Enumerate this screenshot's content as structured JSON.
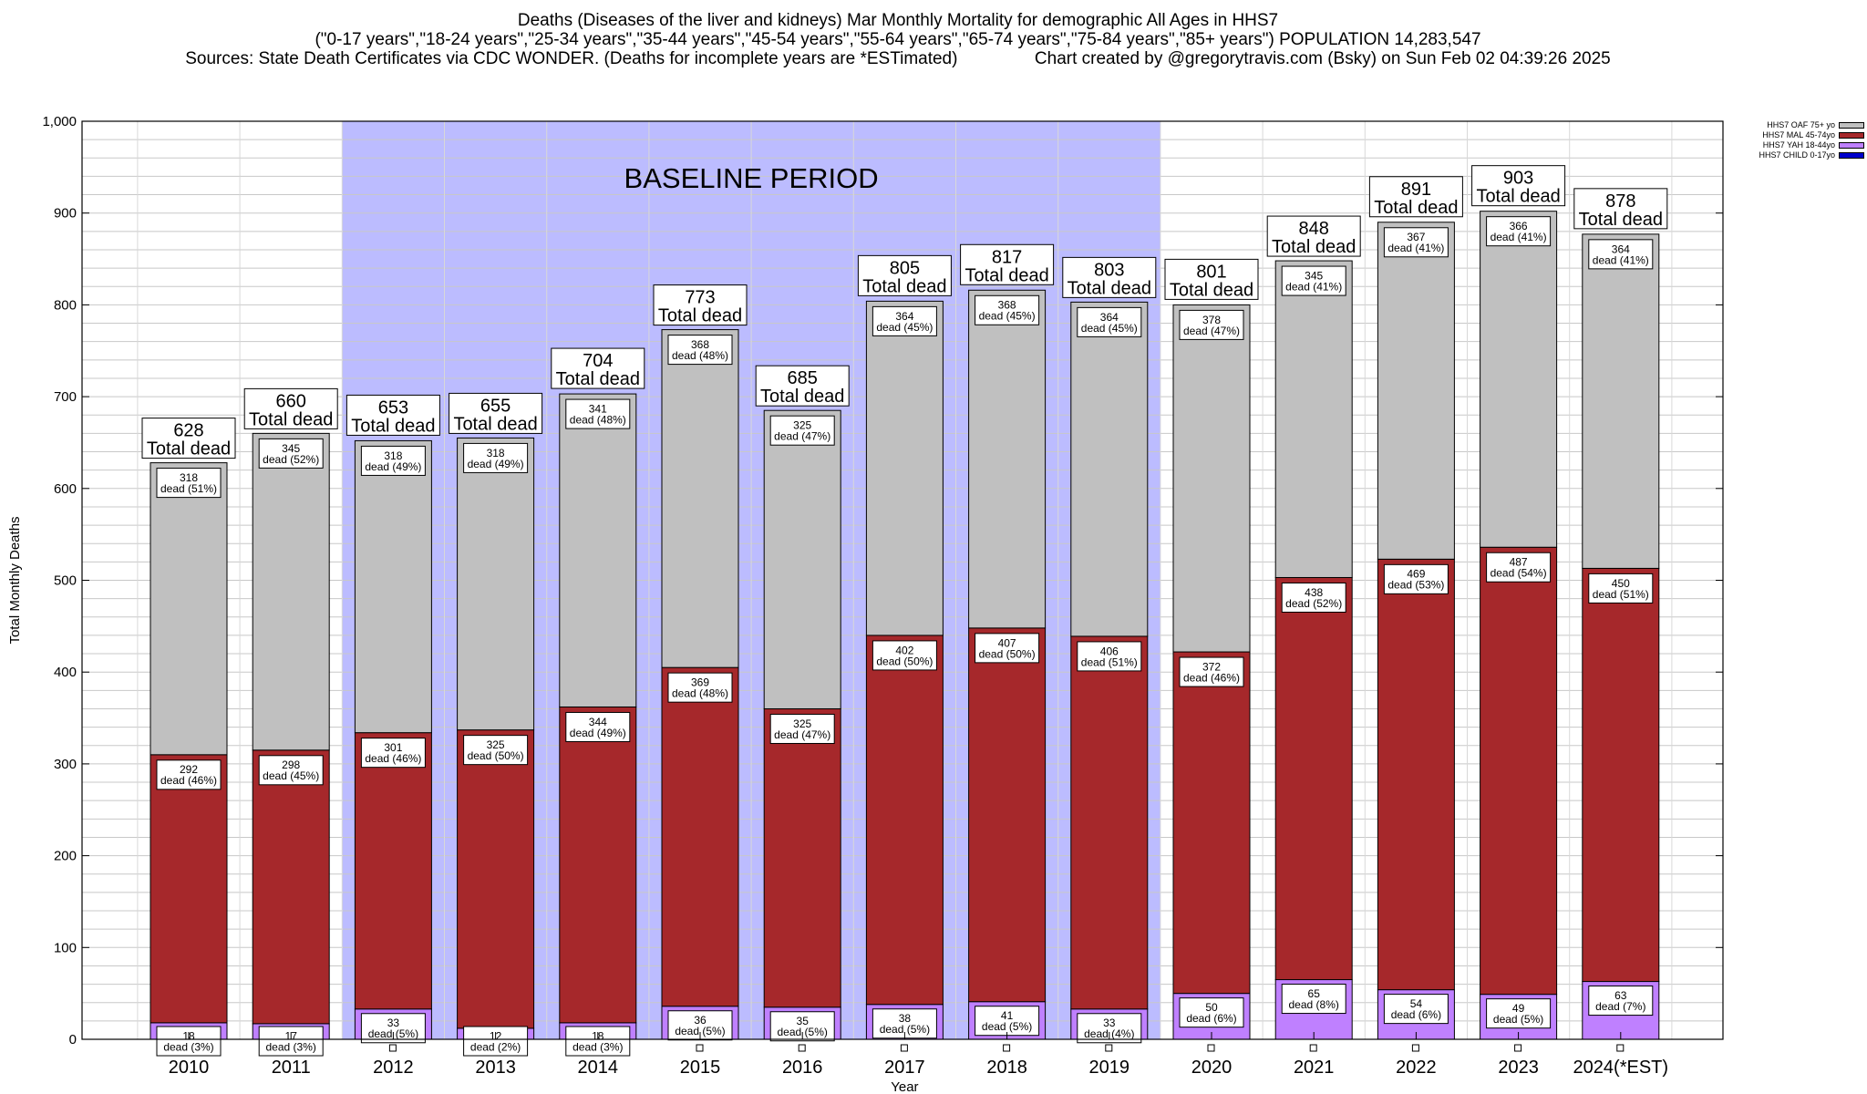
{
  "header": {
    "title_line1": "Deaths (Diseases of the liver and kidneys) Mar Monthly Mortality for demographic All Ages in HHS7",
    "title_line2": "(\"0-17 years\",\"18-24 years\",\"25-34 years\",\"35-44 years\",\"45-54 years\",\"55-64 years\",\"65-74 years\",\"75-84 years\",\"85+ years\") POPULATION 14,283,547",
    "title_line3": "Sources: State Death Certificates via CDC WONDER. (Deaths for incomplete years are *ESTimated)                Chart created by @gregorytravis.com (Bsky) on Sun Feb 02 04:39:26 2025"
  },
  "colors": {
    "oaf": "#c0c0c0",
    "mal": "#a6282b",
    "yah": "#bf80ff",
    "child": "#0000cc",
    "baseline": "#bcbcff",
    "grid": "#c8c8c8"
  },
  "chart_data": {
    "type": "bar",
    "stacked": true,
    "xlabel": "Year",
    "ylabel": "Total Monthly Deaths",
    "ylim": [
      0,
      1000
    ],
    "yticks": [
      "0",
      "100",
      "200",
      "300",
      "400",
      "500",
      "600",
      "700",
      "800",
      "900",
      "1,000"
    ],
    "grid": true,
    "legend_position": "top-right",
    "categories": [
      "2010",
      "2011",
      "2012",
      "2013",
      "2014",
      "2015",
      "2016",
      "2017",
      "2018",
      "2019",
      "2020",
      "2021",
      "2022",
      "2023",
      "2024(*EST)"
    ],
    "series": [
      {
        "name": "HHS7 CHILD 0-17yo",
        "values": [
          0,
          0,
          0,
          0,
          0,
          0,
          0,
          0,
          0,
          0,
          0,
          0,
          0,
          0,
          0
        ]
      },
      {
        "name": "HHS7 YAH 18-44yo",
        "values": [
          18,
          17,
          33,
          12,
          18,
          36,
          35,
          38,
          41,
          33,
          50,
          65,
          54,
          49,
          63
        ],
        "labels": [
          "18",
          "17",
          "33",
          "12",
          "18",
          "36",
          "35",
          "38",
          "41",
          "33",
          "50",
          "65",
          "54",
          "49",
          "63"
        ],
        "sublabels": [
          "dead (3%)",
          "dead (3%)",
          "dead (5%)",
          "dead (2%)",
          "dead (3%)",
          "dead (5%)",
          "dead (5%)",
          "dead (5%)",
          "dead (5%)",
          "dead (4%)",
          "dead (6%)",
          "dead (8%)",
          "dead (6%)",
          "dead (5%)",
          "dead (7%)"
        ]
      },
      {
        "name": "HHS7 MAL 45-74yo",
        "values": [
          292,
          298,
          301,
          325,
          344,
          369,
          325,
          402,
          407,
          406,
          372,
          438,
          469,
          487,
          450
        ],
        "labels": [
          "292",
          "298",
          "301",
          "325",
          "344",
          "369",
          "325",
          "402",
          "407",
          "406",
          "372",
          "438",
          "469",
          "487",
          "450"
        ],
        "sublabels": [
          "dead (46%)",
          "dead (45%)",
          "dead (46%)",
          "dead (50%)",
          "dead (49%)",
          "dead (48%)",
          "dead (47%)",
          "dead (50%)",
          "dead (50%)",
          "dead (51%)",
          "dead (46%)",
          "dead (52%)",
          "dead (53%)",
          "dead (54%)",
          "dead (51%)"
        ]
      },
      {
        "name": "HHS7 OAF 75+ yo",
        "values": [
          318,
          345,
          318,
          318,
          341,
          368,
          325,
          364,
          368,
          364,
          378,
          345,
          367,
          366,
          364
        ],
        "labels": [
          "318",
          "345",
          "318",
          "318",
          "341",
          "368",
          "325",
          "364",
          "368",
          "364",
          "378",
          "345",
          "367",
          "366",
          "364"
        ],
        "sublabels": [
          "dead (51%)",
          "dead (52%)",
          "dead (49%)",
          "dead (49%)",
          "dead (48%)",
          "dead (48%)",
          "dead (47%)",
          "dead (45%)",
          "dead (45%)",
          "dead (45%)",
          "dead (47%)",
          "dead (41%)",
          "dead (41%)",
          "dead (41%)",
          "dead (41%)"
        ]
      }
    ],
    "totals": [
      628,
      660,
      653,
      655,
      704,
      773,
      685,
      805,
      817,
      803,
      801,
      848,
      891,
      903,
      878
    ],
    "total_labels": [
      "628",
      "660",
      "653",
      "655",
      "704",
      "773",
      "685",
      "805",
      "817",
      "803",
      "801",
      "848",
      "891",
      "903",
      "878"
    ],
    "total_sublabel": "Total dead",
    "baseline": {
      "label": "BASELINE PERIOD",
      "from": "2012",
      "to": "2019"
    }
  }
}
